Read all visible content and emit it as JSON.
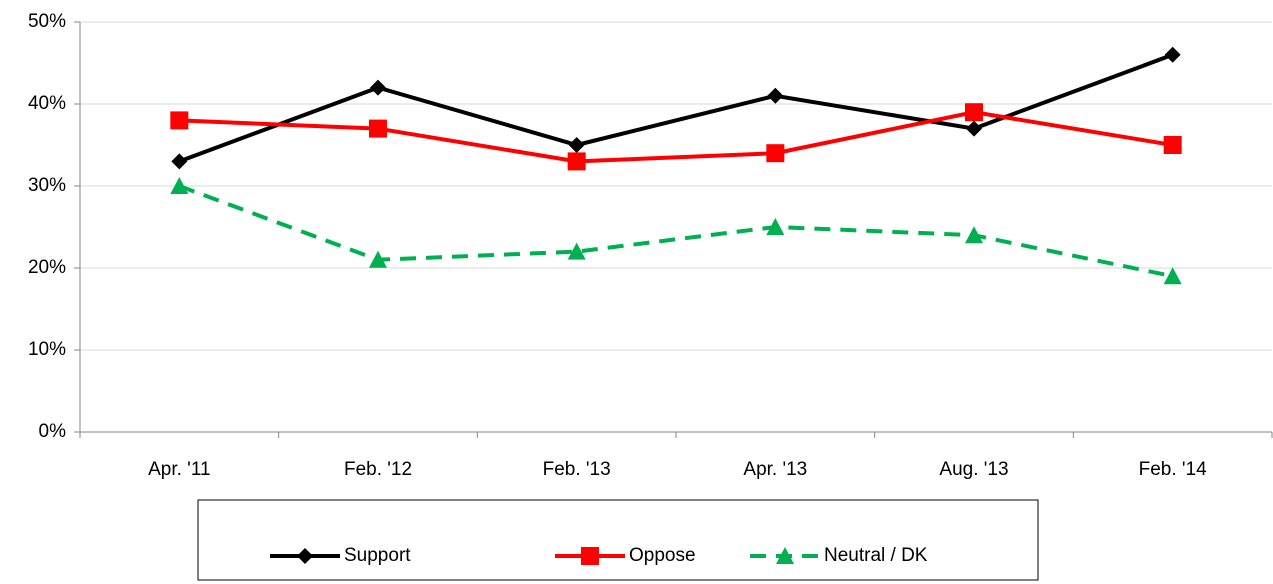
{
  "chart_data": {
    "type": "line",
    "categories": [
      "Apr. '11",
      "Feb. '12",
      "Feb. '13",
      "Apr. '13",
      "Aug. '13",
      "Feb. '14"
    ],
    "series": [
      {
        "name": "Support",
        "color": "#000000",
        "marker": "diamond",
        "dash": false,
        "values": [
          33,
          42,
          35,
          41,
          37,
          46
        ]
      },
      {
        "name": "Oppose",
        "color": "#ff0000",
        "marker": "square",
        "dash": false,
        "values": [
          38,
          37,
          33,
          34,
          39,
          35
        ]
      },
      {
        "name": "Neutral / DK",
        "color": "#00b050",
        "marker": "triangle",
        "dash": true,
        "values": [
          30,
          21,
          22,
          25,
          24,
          19
        ]
      }
    ],
    "ylim": [
      0,
      50
    ],
    "yticks": [
      {
        "value": 0,
        "label": "0%"
      },
      {
        "value": 10,
        "label": "10%"
      },
      {
        "value": 20,
        "label": "20%"
      },
      {
        "value": 30,
        "label": "30%"
      },
      {
        "value": 40,
        "label": "40%"
      },
      {
        "value": 50,
        "label": "50%"
      }
    ],
    "grid": true,
    "legend": "bottom"
  }
}
